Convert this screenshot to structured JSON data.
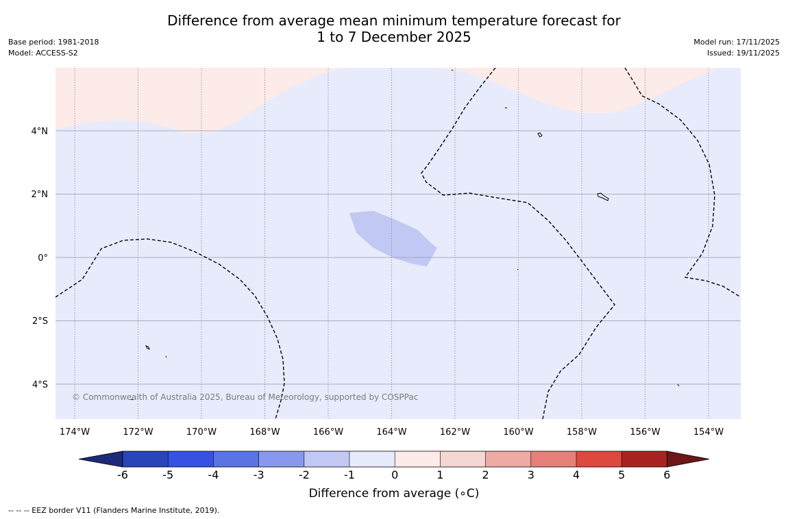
{
  "title": {
    "line1": "Difference from average mean minimum temperature forecast for",
    "line2": "1 to 7 December 2025"
  },
  "meta_left": {
    "base_period": "Base period: 1981-2018",
    "model": "Model: ACCESS-S2"
  },
  "meta_right": {
    "model_run": "Model run: 17/11/2025",
    "issued": "Issued: 19/11/2025"
  },
  "map": {
    "lat_labels": [
      "4°N",
      "2°N",
      "0°",
      "2°S",
      "4°S"
    ],
    "lon_labels": [
      "174°W",
      "172°W",
      "170°W",
      "168°W",
      "166°W",
      "164°W",
      "162°W",
      "160°W",
      "158°W",
      "156°W",
      "154°W"
    ],
    "copyright": "© Commonwealth of Australia 2025, Bureau of Meteorology, supported by COSPPac",
    "colors": {
      "anomaly_0_to_-1": "#e8ebfb",
      "anomaly_0_to_1": "#fcebe8",
      "anomaly_-1_to_-2": "#c1c8f4",
      "gridline": "#9a9aaa",
      "eez_border": "#000000"
    }
  },
  "colorbar": {
    "ticks": [
      "-6",
      "-5",
      "-4",
      "-3",
      "-2",
      "-1",
      "0",
      "1",
      "2",
      "3",
      "4",
      "5",
      "6"
    ],
    "colors": [
      "#1c2a78",
      "#2a44b9",
      "#3552e2",
      "#5a73e5",
      "#8898ec",
      "#c1c8f4",
      "#e8ebfb",
      "#fcebe8",
      "#f4d6d2",
      "#eeaaa5",
      "#e68079",
      "#dd483f",
      "#a92421",
      "#6e1717"
    ],
    "label": "Difference from average (∘C)"
  },
  "footer": "--  --  -- EEZ border V11 (Flanders Marine Institute, 2019)."
}
